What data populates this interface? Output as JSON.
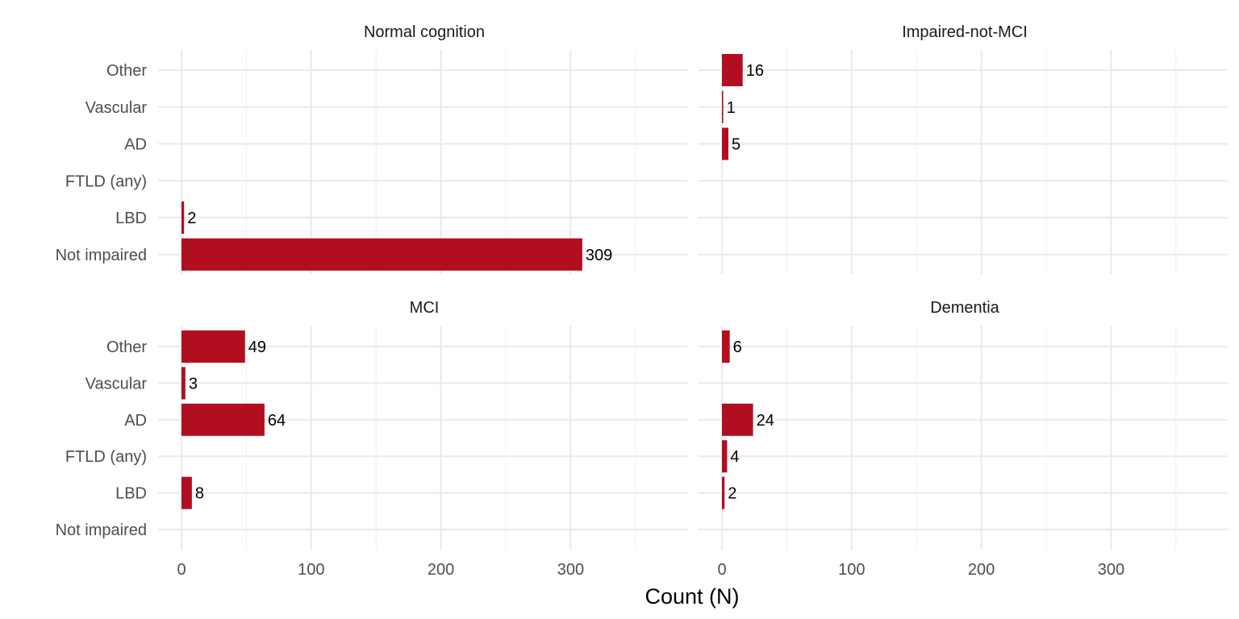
{
  "chart_data": {
    "type": "bar",
    "orientation": "horizontal",
    "facets": "2x2",
    "xlabel": "Count (N)",
    "ylabel": "",
    "xlim": [
      0,
      380
    ],
    "x_ticks": [
      0,
      100,
      200,
      300
    ],
    "grid": true,
    "bar_color": "#B10F20",
    "categories": [
      "Other",
      "Vascular",
      "AD",
      "FTLD (any)",
      "LBD",
      "Not impaired"
    ],
    "panels": [
      {
        "title": "Normal cognition",
        "values": [
          null,
          null,
          null,
          null,
          2,
          309
        ]
      },
      {
        "title": "Impaired-not-MCI",
        "values": [
          16,
          1,
          5,
          null,
          null,
          null
        ]
      },
      {
        "title": "MCI",
        "values": [
          49,
          3,
          64,
          null,
          8,
          null
        ]
      },
      {
        "title": "Dementia",
        "values": [
          6,
          null,
          24,
          4,
          2,
          null
        ]
      }
    ]
  }
}
